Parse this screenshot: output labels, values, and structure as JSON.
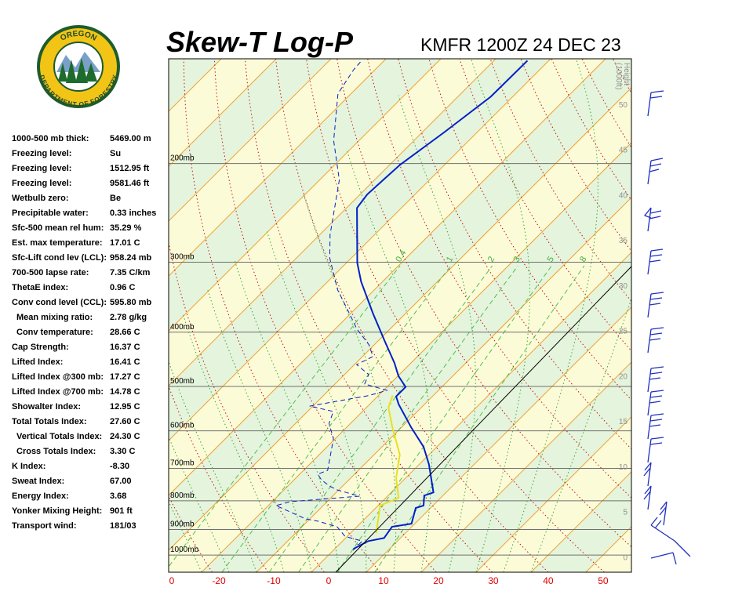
{
  "logo": {
    "top": "OREGON",
    "bottom": "DEPARTMENT OF FORESTRY"
  },
  "indices": [
    {
      "label": "1000-500 mb thick:",
      "value": "5469.00 m"
    },
    {
      "label": "Freezing level:",
      "value": "Su"
    },
    {
      "label": "Freezing level:",
      "value": "1512.95 ft"
    },
    {
      "label": "Freezing level:",
      "value": "9581.46 ft"
    },
    {
      "label": "Wetbulb zero:",
      "value": "Be"
    },
    {
      "label": "Precipitable water:",
      "value": "0.33 inches"
    },
    {
      "label": "Sfc-500 mean rel hum:",
      "value": "35.29 %"
    },
    {
      "label": "Est. max temperature:",
      "value": "17.01 C"
    },
    {
      "label": "Sfc-Lift cond lev (LCL):",
      "value": "958.24 mb"
    },
    {
      "label": "700-500 lapse rate:",
      "value": "7.35 C/km"
    },
    {
      "label": "ThetaE index:",
      "value": "0.96 C"
    },
    {
      "label": "Conv cond level (CCL):",
      "value": "595.80 mb"
    },
    {
      "label": "Mean mixing ratio:",
      "value": "2.78 g/kg"
    },
    {
      "label": "Conv temperature:",
      "value": "28.66 C"
    },
    {
      "label": "Cap Strength:",
      "value": "16.37 C"
    },
    {
      "label": "Lifted Index:",
      "value": "16.41 C"
    },
    {
      "label": "Lifted Index @300 mb:",
      "value": "17.27 C"
    },
    {
      "label": "Lifted Index @700 mb:",
      "value": "14.78 C"
    },
    {
      "label": "Showalter Index:",
      "value": "12.95 C"
    },
    {
      "label": "Total Totals Index:",
      "value": "27.60 C"
    },
    {
      "label": "Vertical Totals Index:",
      "value": "24.30 C"
    },
    {
      "label": "Cross Totals Index:",
      "value": "3.30 C"
    },
    {
      "label": "K Index:",
      "value": "-8.30"
    },
    {
      "label": "Sweat Index:",
      "value": "67.00"
    },
    {
      "label": "Energy Index:",
      "value": "3.68"
    },
    {
      "label": "Yonker Mixing Height:",
      "value": "901 ft"
    },
    {
      "label": "Transport wind:",
      "value": "181/03"
    }
  ],
  "chart_data": {
    "type": "skewt",
    "title": "Skew-T Log-P",
    "subtitle": "KMFR 1200Z 24 DEC 23",
    "log_scale": true,
    "xlim": [
      -26,
      58.3
    ],
    "xticks": [
      {
        "value": -30,
        "label": "0"
      },
      -20,
      -10,
      0,
      10,
      20,
      30,
      40,
      50
    ],
    "ylim": [
      1073,
      130
    ],
    "yticks": [
      {
        "value": 1000,
        "label": "1000mb"
      },
      {
        "value": 900,
        "label": "900mb"
      },
      {
        "value": 800,
        "label": "800mb"
      },
      {
        "value": 700,
        "label": "700mb"
      },
      {
        "value": 600,
        "label": "600mb"
      },
      {
        "value": 500,
        "label": "500mb"
      },
      {
        "value": 400,
        "label": "400mb"
      },
      {
        "value": 300,
        "label": "300mb"
      },
      {
        "value": 200,
        "label": "200mb"
      }
    ],
    "y2label": [
      "Height",
      "(1000ft)"
    ],
    "y2lim": [
      -1.7,
      55
    ],
    "y2ticks": [
      0,
      5,
      10,
      15,
      20,
      25,
      30,
      35,
      40,
      45,
      50
    ],
    "mixing_ratios": [
      0.4,
      1,
      2,
      3,
      5,
      8
    ],
    "series": [
      {
        "color": "#0020c8",
        "style": "solid",
        "x": [
          3.4,
          4.7,
          7.0,
          6.4,
          9.4,
          7.3,
          8.3,
          6.6,
          7.7,
          1.7,
          -2.4,
          -8.3,
          -14.7,
          -16.6,
          -16.6,
          -19.9,
          -23.0,
          -28.9,
          -36.0,
          -43.9,
          -48.0,
          -58.1,
          -58.7,
          -58.4,
          -58.1,
          -56.0,
          -54.0,
          -53.9
        ],
        "values": [
          975,
          944,
          932,
          890,
          879,
          824,
          816,
          783,
          773,
          688,
          641,
          591,
          538,
          521,
          501,
          479,
          454,
          414,
          370,
          325,
          301,
          240,
          227,
          213,
          201,
          176,
          152,
          131
        ]
      },
      {
        "color": "#0020c8",
        "style": "dashed",
        "x": [
          3.6,
          3.6,
          -0.4,
          -3.6,
          -8.1,
          -10.7,
          -18.6,
          -16.7,
          -5.1,
          -10.3,
          -12.4,
          -15,
          -16.7,
          -15.6,
          -20.3,
          -23.9,
          -25.3,
          -30.6,
          -21.7,
          -19.4,
          -24.6,
          -25.6,
          -29.6,
          -28.1,
          -31,
          -36,
          -40.3,
          -46.7,
          -53.9,
          -58.1,
          -66.4,
          -74.6,
          -82.4,
          -83.9,
          -84.1
        ],
        "values": [
          981,
          944,
          926,
          890,
          870,
          862,
          816,
          803,
          785,
          765,
          753,
          734,
          717,
          706,
          620,
          582,
          554,
          542,
          519,
          508,
          495,
          476,
          457,
          442,
          421,
          395,
          370,
          336,
          295,
          268,
          214,
          182,
          150,
          136,
          131
        ]
      },
      {
        "color": "#e8e020",
        "style": "solid",
        "x": [
          -17.4,
          -16,
          -11.7,
          -5.3,
          -1.7,
          2.3,
          0.4,
          4.7
        ],
        "values": [
          519,
          545,
          591,
          662,
          729,
          790,
          816,
          914
        ]
      }
    ]
  }
}
